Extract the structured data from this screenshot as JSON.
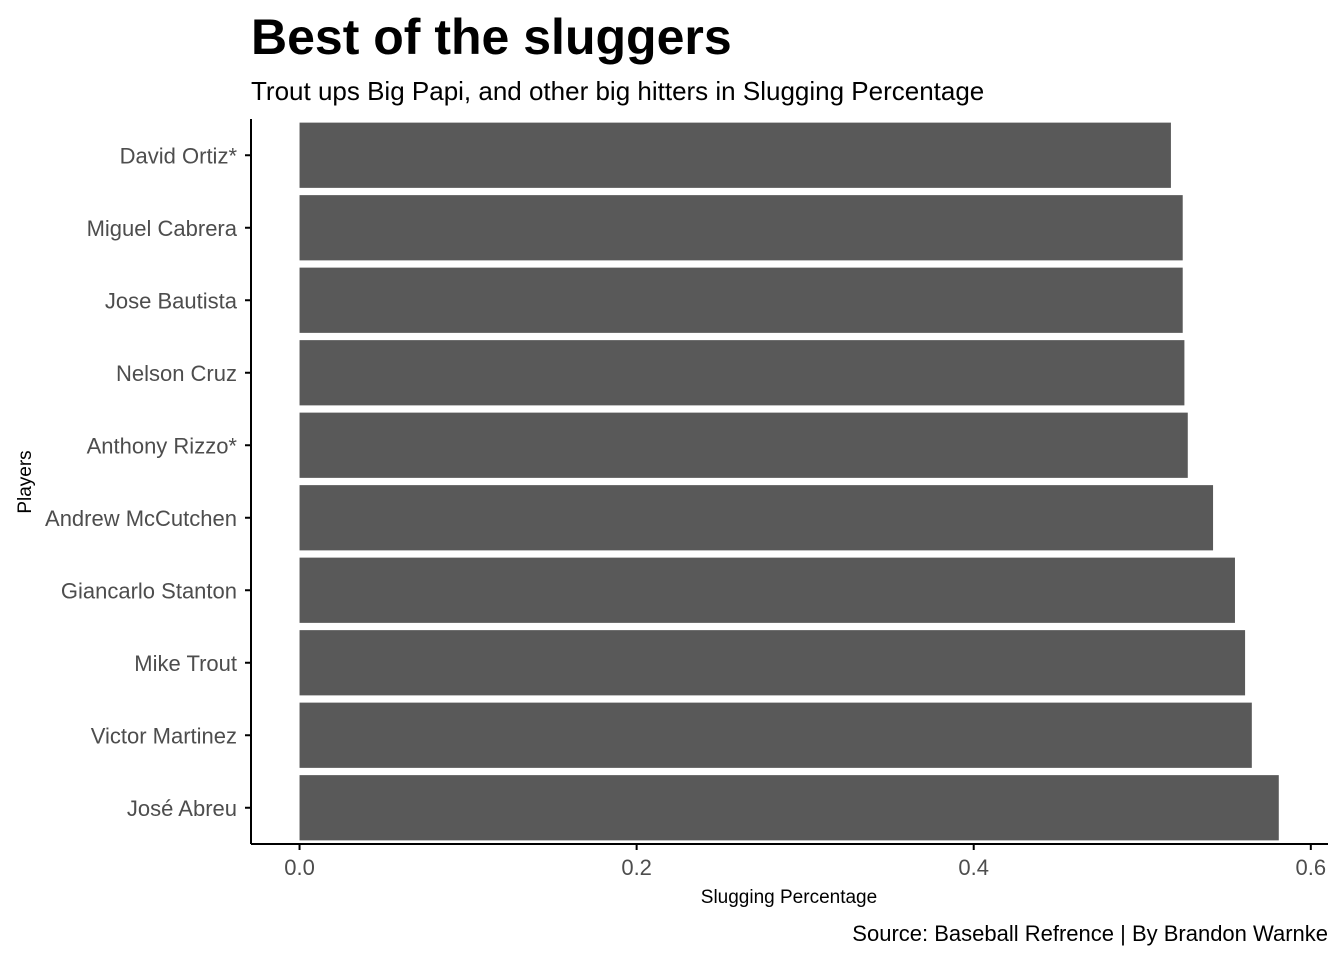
{
  "chart_data": {
    "type": "bar",
    "orientation": "horizontal",
    "title": "Best of the sluggers",
    "subtitle": "Trout ups Big Papi, and other big hitters in Slugging Percentage",
    "caption": "Source: Baseball Refrence | By Brandon Warnke",
    "xlabel": "Slugging Percentage",
    "ylabel": "Players",
    "categories": [
      "David Ortiz*",
      "Miguel Cabrera",
      "Jose Bautista",
      "Nelson Cruz",
      "Anthony Rizzo*",
      "Andrew McCutchen",
      "Giancarlo Stanton",
      "Mike Trout",
      "Victor Martinez",
      "José Abreu"
    ],
    "values": [
      0.517,
      0.524,
      0.524,
      0.525,
      0.527,
      0.542,
      0.555,
      0.561,
      0.565,
      0.581
    ],
    "xlim": [
      -0.0288,
      0.6102
    ],
    "xticks": [
      0.0,
      0.2,
      0.4,
      0.6
    ],
    "xtick_labels": [
      "0.0",
      "0.2",
      "0.4",
      "0.6"
    ],
    "grid": false,
    "legend": "none",
    "bar_color": "#595959",
    "axis_color": "#000000"
  }
}
